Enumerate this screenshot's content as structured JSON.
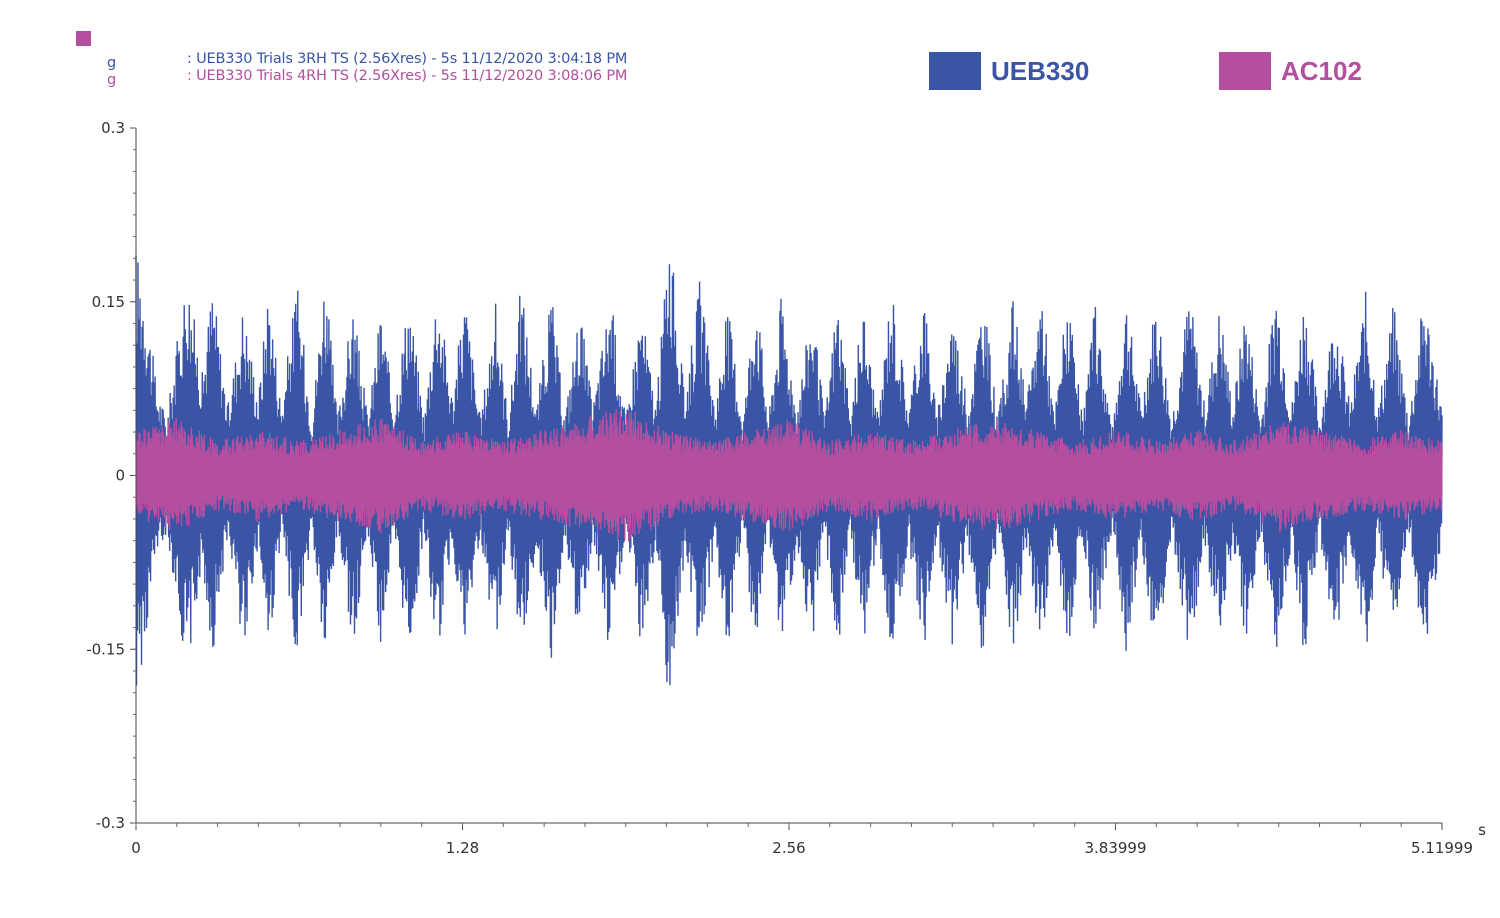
{
  "header": {
    "marker_color": "#b34f9e",
    "rows": [
      {
        "unit": "g",
        "text": ": UEB330 Trials 3RH TS (2.56Xres) - 5s 11/12/2020 3:04:18 PM",
        "color": "#3a55a6"
      },
      {
        "unit": "g",
        "text": ": UEB330 Trials 4RH TS (2.56Xres) - 5s 11/12/2020 3:08:06 PM",
        "color": "#b34f9e"
      }
    ]
  },
  "legend": [
    {
      "label": "UEB330",
      "color": "#3a55a6"
    },
    {
      "label": "AC102",
      "color": "#b34f9e"
    }
  ],
  "chart_data": {
    "type": "line",
    "title": "",
    "xlabel": "",
    "ylabel": "",
    "x_unit": "s",
    "xlim": [
      0,
      5.11999
    ],
    "ylim": [
      -0.3,
      0.3
    ],
    "x_ticks": [
      0,
      1.28,
      2.56,
      3.83999,
      5.11999
    ],
    "x_tick_labels": [
      "0",
      "1.28",
      "2.56",
      "3.83999",
      "5.11999"
    ],
    "y_ticks": [
      0.3,
      0.15,
      0,
      -0.15,
      -0.3
    ],
    "y_tick_labels": [
      "0.3",
      "0.15",
      "0",
      "-0.15",
      "-0.3"
    ],
    "grid": false,
    "legend_position": "top-right",
    "series": [
      {
        "name": "UEB330",
        "color": "#3a55a6",
        "envelope_x": [
          0,
          0.03,
          0.08,
          0.12,
          0.2,
          0.26,
          0.3,
          0.36,
          0.42,
          0.48,
          0.52,
          0.57,
          0.63,
          0.69,
          0.74,
          0.79,
          0.85,
          0.91,
          0.96,
          1.01,
          1.07,
          1.13,
          1.18,
          1.24,
          1.29,
          1.35,
          1.41,
          1.46,
          1.51,
          1.57,
          1.63,
          1.68,
          1.74,
          1.79,
          1.86,
          1.92,
          1.98,
          2.04,
          2.09,
          2.15,
          2.21,
          2.27,
          2.32,
          2.38,
          2.43,
          2.48,
          2.53,
          2.59,
          2.65,
          2.7,
          2.75,
          2.8,
          2.85,
          2.91,
          2.96,
          3.03,
          3.09,
          3.14,
          3.2,
          3.26,
          3.32,
          3.38,
          3.44,
          3.49,
          3.55,
          3.6,
          3.65,
          3.71,
          3.76,
          3.83,
          3.88,
          3.94,
          4.0,
          4.06,
          4.13,
          4.19,
          4.25,
          4.3,
          4.35,
          4.41,
          4.47,
          4.53,
          4.58,
          4.64,
          4.7,
          4.76,
          4.82,
          4.87,
          4.93,
          4.99,
          5.05,
          5.12
        ],
        "envelope_pos": [
          0.2,
          0.17,
          0.08,
          0.05,
          0.18,
          0.09,
          0.17,
          0.06,
          0.15,
          0.07,
          0.17,
          0.06,
          0.17,
          0.05,
          0.18,
          0.05,
          0.15,
          0.05,
          0.15,
          0.06,
          0.16,
          0.05,
          0.17,
          0.07,
          0.16,
          0.05,
          0.15,
          0.05,
          0.17,
          0.06,
          0.16,
          0.05,
          0.15,
          0.06,
          0.16,
          0.05,
          0.15,
          0.06,
          0.22,
          0.07,
          0.17,
          0.06,
          0.15,
          0.05,
          0.17,
          0.05,
          0.16,
          0.06,
          0.15,
          0.05,
          0.16,
          0.05,
          0.15,
          0.05,
          0.17,
          0.06,
          0.16,
          0.05,
          0.15,
          0.06,
          0.16,
          0.05,
          0.16,
          0.06,
          0.17,
          0.05,
          0.16,
          0.05,
          0.15,
          0.04,
          0.16,
          0.06,
          0.16,
          0.05,
          0.16,
          0.06,
          0.15,
          0.06,
          0.15,
          0.05,
          0.17,
          0.06,
          0.16,
          0.05,
          0.15,
          0.06,
          0.16,
          0.06,
          0.15,
          0.05,
          0.16,
          0.06
        ],
        "envelope_neg": [
          -0.19,
          -0.16,
          -0.07,
          -0.05,
          -0.17,
          -0.08,
          -0.16,
          -0.05,
          -0.15,
          -0.06,
          -0.16,
          -0.05,
          -0.16,
          -0.05,
          -0.17,
          -0.05,
          -0.15,
          -0.05,
          -0.15,
          -0.06,
          -0.16,
          -0.05,
          -0.16,
          -0.06,
          -0.16,
          -0.05,
          -0.15,
          -0.05,
          -0.16,
          -0.06,
          -0.16,
          -0.05,
          -0.15,
          -0.06,
          -0.16,
          -0.05,
          -0.15,
          -0.06,
          -0.21,
          -0.07,
          -0.16,
          -0.06,
          -0.15,
          -0.05,
          -0.16,
          -0.05,
          -0.16,
          -0.06,
          -0.15,
          -0.05,
          -0.16,
          -0.05,
          -0.15,
          -0.05,
          -0.16,
          -0.06,
          -0.16,
          -0.05,
          -0.15,
          -0.06,
          -0.16,
          -0.05,
          -0.16,
          -0.06,
          -0.16,
          -0.05,
          -0.16,
          -0.05,
          -0.15,
          -0.04,
          -0.16,
          -0.06,
          -0.16,
          -0.05,
          -0.16,
          -0.06,
          -0.15,
          -0.06,
          -0.15,
          -0.05,
          -0.16,
          -0.06,
          -0.16,
          -0.05,
          -0.15,
          -0.06,
          -0.16,
          -0.06,
          -0.15,
          -0.05,
          -0.16,
          -0.06
        ]
      },
      {
        "name": "AC102",
        "color": "#b34f9e",
        "envelope_x": [
          0,
          0.16,
          0.32,
          0.48,
          0.64,
          0.8,
          0.96,
          1.12,
          1.28,
          1.44,
          1.6,
          1.76,
          1.92,
          2.08,
          2.24,
          2.4,
          2.56,
          2.72,
          2.88,
          3.04,
          3.2,
          3.36,
          3.52,
          3.68,
          3.84,
          4.0,
          4.16,
          4.32,
          4.48,
          4.64,
          4.8,
          4.96,
          5.12
        ],
        "envelope_pos": [
          0.04,
          0.05,
          0.03,
          0.04,
          0.03,
          0.04,
          0.05,
          0.03,
          0.04,
          0.03,
          0.04,
          0.05,
          0.06,
          0.04,
          0.03,
          0.04,
          0.05,
          0.03,
          0.04,
          0.03,
          0.04,
          0.05,
          0.04,
          0.03,
          0.04,
          0.03,
          0.04,
          0.03,
          0.05,
          0.04,
          0.03,
          0.04,
          0.03
        ],
        "envelope_neg": [
          -0.04,
          -0.05,
          -0.03,
          -0.04,
          -0.03,
          -0.04,
          -0.05,
          -0.03,
          -0.04,
          -0.03,
          -0.04,
          -0.05,
          -0.06,
          -0.04,
          -0.03,
          -0.04,
          -0.05,
          -0.03,
          -0.04,
          -0.03,
          -0.04,
          -0.05,
          -0.04,
          -0.03,
          -0.04,
          -0.03,
          -0.04,
          -0.03,
          -0.05,
          -0.04,
          -0.03,
          -0.04,
          -0.03
        ]
      }
    ]
  }
}
